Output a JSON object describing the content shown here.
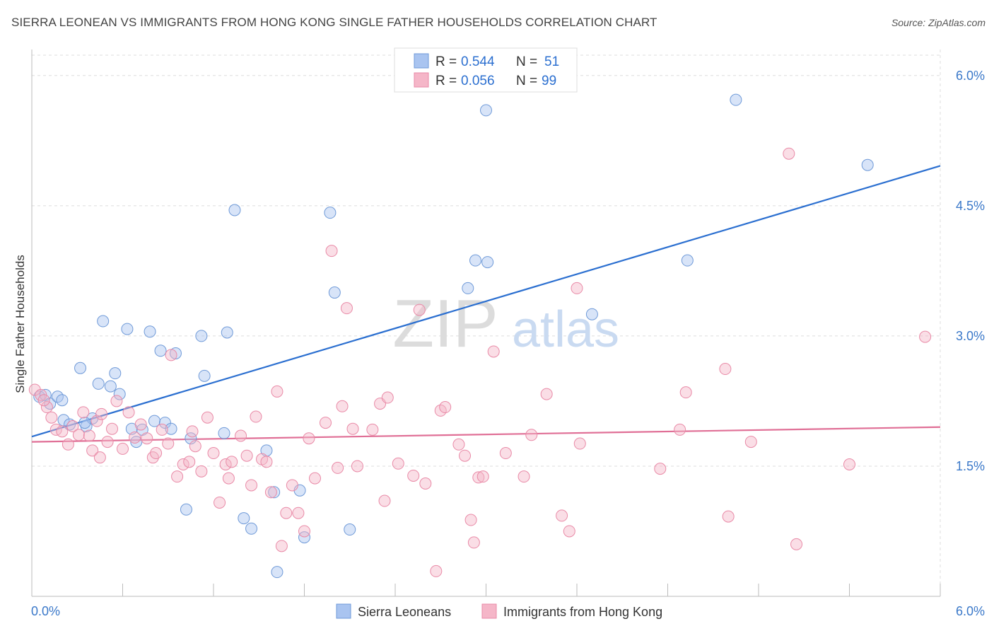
{
  "title": "SIERRA LEONEAN VS IMMIGRANTS FROM HONG KONG SINGLE FATHER HOUSEHOLDS CORRELATION CHART",
  "source": "Source: ZipAtlas.com",
  "watermark": {
    "zip": "ZIP",
    "atlas": "atlas"
  },
  "legend_top": [
    {
      "r_label": "R = ",
      "r_value": "0.544",
      "n_label": "N = ",
      "n_value": "51",
      "color": "#a9c4f0"
    },
    {
      "r_label": "R = ",
      "r_value": "0.056",
      "n_label": "N = ",
      "n_value": "99",
      "color": "#f5b6c8"
    }
  ],
  "legend_bottom": [
    "Sierra Leoneans",
    "Immigrants from Hong Kong"
  ],
  "chart_data": {
    "type": "scatter",
    "title": "SIERRA LEONEAN VS IMMIGRANTS FROM HONG KONG SINGLE FATHER HOUSEHOLDS CORRELATION CHART",
    "xlabel": "",
    "ylabel": "Single Father Households",
    "xlim": [
      0,
      6.0
    ],
    "ylim": [
      0,
      6.3
    ],
    "x_tick_labels": [
      "0.0%",
      "6.0%"
    ],
    "y_ticks": [
      1.5,
      3.0,
      4.5,
      6.0
    ],
    "y_tick_labels": [
      "1.5%",
      "3.0%",
      "4.5%",
      "6.0%"
    ],
    "grid": true,
    "legend_position": "top-center",
    "series": [
      {
        "name": "Sierra Leoneans",
        "color": "#a9c4f0",
        "stroke": "#6f9ad8",
        "line_color": "#2b6fd0",
        "trend": [
          [
            0,
            1.84
          ],
          [
            6.0,
            4.96
          ]
        ],
        "points": [
          [
            0.05,
            2.3
          ],
          [
            0.09,
            2.32
          ],
          [
            0.12,
            2.22
          ],
          [
            0.17,
            2.3
          ],
          [
            0.2,
            2.26
          ],
          [
            0.21,
            2.03
          ],
          [
            0.25,
            1.98
          ],
          [
            0.32,
            2.63
          ],
          [
            0.36,
            1.96
          ],
          [
            0.4,
            2.05
          ],
          [
            0.44,
            2.45
          ],
          [
            0.47,
            3.17
          ],
          [
            0.52,
            2.42
          ],
          [
            0.55,
            2.57
          ],
          [
            0.58,
            2.33
          ],
          [
            0.63,
            3.08
          ],
          [
            0.66,
            1.93
          ],
          [
            0.69,
            1.78
          ],
          [
            0.73,
            1.92
          ],
          [
            0.78,
            3.05
          ],
          [
            0.81,
            2.02
          ],
          [
            0.85,
            2.83
          ],
          [
            0.88,
            2.0
          ],
          [
            0.92,
            1.93
          ],
          [
            0.95,
            2.8
          ],
          [
            1.02,
            1.0
          ],
          [
            1.05,
            1.82
          ],
          [
            1.12,
            3.0
          ],
          [
            1.14,
            2.54
          ],
          [
            1.27,
            1.88
          ],
          [
            1.29,
            3.04
          ],
          [
            1.34,
            4.45
          ],
          [
            1.4,
            0.9
          ],
          [
            1.45,
            0.78
          ],
          [
            1.55,
            1.68
          ],
          [
            1.6,
            1.2
          ],
          [
            1.62,
            0.28
          ],
          [
            1.77,
            1.22
          ],
          [
            1.8,
            0.68
          ],
          [
            1.97,
            4.42
          ],
          [
            2.0,
            3.5
          ],
          [
            2.1,
            0.77
          ],
          [
            2.88,
            3.55
          ],
          [
            2.93,
            3.87
          ],
          [
            3.0,
            5.6
          ],
          [
            3.01,
            3.85
          ],
          [
            3.7,
            3.25
          ],
          [
            4.33,
            3.87
          ],
          [
            4.65,
            5.72
          ],
          [
            5.52,
            4.97
          ],
          [
            0.35,
            2.0
          ]
        ]
      },
      {
        "name": "Immigrants from Hong Kong",
        "color": "#f5b6c8",
        "stroke": "#e98aa7",
        "line_color": "#e06f96",
        "trend": [
          [
            0,
            1.78
          ],
          [
            6.0,
            1.95
          ]
        ],
        "points": [
          [
            0.02,
            2.38
          ],
          [
            0.06,
            2.32
          ],
          [
            0.1,
            2.18
          ],
          [
            0.13,
            2.06
          ],
          [
            0.16,
            1.92
          ],
          [
            0.2,
            1.9
          ],
          [
            0.24,
            1.75
          ],
          [
            0.27,
            1.96
          ],
          [
            0.31,
            1.86
          ],
          [
            0.34,
            2.12
          ],
          [
            0.38,
            1.85
          ],
          [
            0.4,
            1.68
          ],
          [
            0.43,
            2.02
          ],
          [
            0.46,
            2.1
          ],
          [
            0.5,
            1.78
          ],
          [
            0.53,
            1.93
          ],
          [
            0.56,
            2.25
          ],
          [
            0.6,
            1.7
          ],
          [
            0.64,
            2.12
          ],
          [
            0.68,
            1.83
          ],
          [
            0.72,
            1.98
          ],
          [
            0.76,
            1.82
          ],
          [
            0.8,
            1.6
          ],
          [
            0.82,
            1.65
          ],
          [
            0.86,
            1.92
          ],
          [
            0.9,
            1.76
          ],
          [
            0.92,
            2.78
          ],
          [
            0.96,
            1.38
          ],
          [
            1.0,
            1.52
          ],
          [
            1.04,
            1.55
          ],
          [
            1.06,
            1.9
          ],
          [
            1.08,
            1.73
          ],
          [
            1.12,
            1.44
          ],
          [
            1.16,
            2.06
          ],
          [
            1.2,
            1.65
          ],
          [
            1.24,
            1.08
          ],
          [
            1.28,
            1.52
          ],
          [
            1.3,
            1.36
          ],
          [
            1.32,
            1.55
          ],
          [
            1.38,
            1.85
          ],
          [
            1.42,
            1.62
          ],
          [
            1.45,
            1.28
          ],
          [
            1.48,
            2.07
          ],
          [
            1.52,
            1.58
          ],
          [
            1.55,
            1.55
          ],
          [
            1.58,
            1.2
          ],
          [
            1.62,
            2.36
          ],
          [
            1.65,
            0.58
          ],
          [
            1.68,
            0.96
          ],
          [
            1.72,
            1.28
          ],
          [
            1.76,
            0.96
          ],
          [
            1.8,
            0.75
          ],
          [
            1.83,
            1.82
          ],
          [
            1.87,
            1.36
          ],
          [
            1.94,
            2.0
          ],
          [
            1.98,
            3.98
          ],
          [
            2.02,
            1.48
          ],
          [
            2.05,
            2.19
          ],
          [
            2.08,
            3.32
          ],
          [
            2.12,
            1.93
          ],
          [
            2.15,
            1.5
          ],
          [
            2.25,
            1.92
          ],
          [
            2.3,
            2.22
          ],
          [
            2.33,
            1.1
          ],
          [
            2.35,
            2.29
          ],
          [
            2.42,
            1.53
          ],
          [
            2.52,
            1.39
          ],
          [
            2.56,
            3.3
          ],
          [
            2.6,
            1.3
          ],
          [
            2.67,
            0.29
          ],
          [
            2.7,
            2.14
          ],
          [
            2.73,
            2.18
          ],
          [
            2.82,
            1.75
          ],
          [
            2.86,
            1.62
          ],
          [
            2.9,
            0.88
          ],
          [
            2.92,
            0.62
          ],
          [
            2.95,
            1.37
          ],
          [
            2.98,
            1.38
          ],
          [
            3.05,
            2.82
          ],
          [
            3.13,
            1.65
          ],
          [
            3.25,
            1.38
          ],
          [
            3.3,
            1.86
          ],
          [
            3.4,
            2.33
          ],
          [
            3.5,
            0.93
          ],
          [
            3.55,
            0.75
          ],
          [
            3.6,
            3.55
          ],
          [
            3.62,
            1.76
          ],
          [
            4.15,
            1.47
          ],
          [
            4.28,
            1.92
          ],
          [
            4.32,
            2.35
          ],
          [
            4.6,
            0.92
          ],
          [
            4.58,
            2.62
          ],
          [
            4.75,
            1.78
          ],
          [
            5.0,
            5.1
          ],
          [
            5.05,
            0.6
          ],
          [
            5.4,
            1.52
          ],
          [
            5.9,
            2.99
          ],
          [
            0.08,
            2.26
          ],
          [
            0.45,
            1.6
          ]
        ]
      }
    ]
  }
}
